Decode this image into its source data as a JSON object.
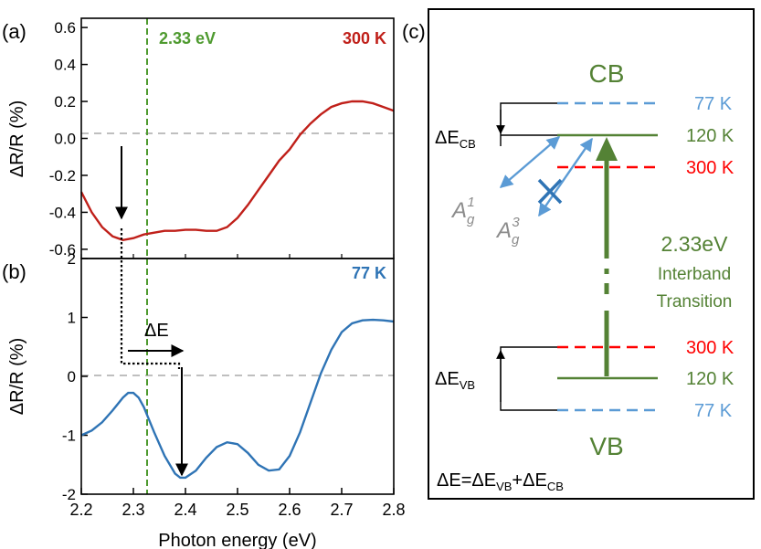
{
  "panels": {
    "a_label": "(a)",
    "b_label": "(b)",
    "c_label": "(c)"
  },
  "chart_data": [
    {
      "type": "line",
      "panel": "(a)",
      "title": "",
      "xlabel": "",
      "ylabel": "ΔR/R (%)",
      "xlim": [
        2.2,
        2.8
      ],
      "ylim": [
        -0.65,
        0.65
      ],
      "yticks": [
        -0.6,
        -0.4,
        -0.2,
        0.0,
        0.2,
        0.4,
        0.6
      ],
      "ytick_labels": [
        "-0.6",
        "-0.4",
        "-0.2",
        "0.0",
        "0.2",
        "0.4",
        "0.6"
      ],
      "series": [
        {
          "name": "300 K",
          "color": "#c0201a",
          "x": [
            2.2,
            2.22,
            2.24,
            2.26,
            2.28,
            2.3,
            2.32,
            2.34,
            2.36,
            2.38,
            2.4,
            2.42,
            2.44,
            2.46,
            2.48,
            2.5,
            2.52,
            2.54,
            2.56,
            2.58,
            2.6,
            2.62,
            2.64,
            2.66,
            2.68,
            2.7,
            2.72,
            2.74,
            2.76,
            2.78,
            2.8
          ],
          "y": [
            -0.29,
            -0.4,
            -0.48,
            -0.53,
            -0.55,
            -0.54,
            -0.52,
            -0.51,
            -0.5,
            -0.5,
            -0.495,
            -0.495,
            -0.5,
            -0.5,
            -0.48,
            -0.43,
            -0.36,
            -0.28,
            -0.2,
            -0.12,
            -0.06,
            0.02,
            0.08,
            0.13,
            0.17,
            0.19,
            0.2,
            0.2,
            0.19,
            0.17,
            0.15
          ]
        }
      ],
      "annotations": {
        "energy_line_label": "2.33 eV",
        "energy_line_x": 2.33,
        "series_label": "300 K",
        "arrow_x": 2.28
      }
    },
    {
      "type": "line",
      "panel": "(b)",
      "title": "",
      "xlabel": "Photon energy (eV)",
      "ylabel": "ΔR/R (%)",
      "xlim": [
        2.2,
        2.8
      ],
      "ylim": [
        -2,
        2
      ],
      "xticks": [
        2.2,
        2.3,
        2.4,
        2.5,
        2.6,
        2.7,
        2.8
      ],
      "xtick_labels": [
        "2.2",
        "2.3",
        "2.4",
        "2.5",
        "2.6",
        "2.7",
        "2.8"
      ],
      "yticks": [
        -2,
        -1,
        0,
        1,
        2
      ],
      "ytick_labels": [
        "-2",
        "-1",
        "0",
        "1",
        "2"
      ],
      "series": [
        {
          "name": "77 K",
          "color": "#2f74b5",
          "x": [
            2.2,
            2.22,
            2.24,
            2.26,
            2.28,
            2.29,
            2.3,
            2.31,
            2.32,
            2.34,
            2.36,
            2.38,
            2.39,
            2.4,
            2.42,
            2.44,
            2.46,
            2.48,
            2.5,
            2.52,
            2.54,
            2.56,
            2.58,
            2.6,
            2.62,
            2.64,
            2.66,
            2.68,
            2.7,
            2.72,
            2.74,
            2.76,
            2.78,
            2.8
          ],
          "y": [
            -1.0,
            -0.92,
            -0.78,
            -0.58,
            -0.36,
            -0.28,
            -0.28,
            -0.36,
            -0.52,
            -0.95,
            -1.35,
            -1.65,
            -1.72,
            -1.72,
            -1.6,
            -1.38,
            -1.2,
            -1.12,
            -1.15,
            -1.3,
            -1.5,
            -1.6,
            -1.58,
            -1.35,
            -0.95,
            -0.45,
            0.05,
            0.45,
            0.75,
            0.9,
            0.95,
            0.96,
            0.95,
            0.93
          ]
        }
      ],
      "annotations": {
        "delta_e_label": "ΔE",
        "series_label": "77 K",
        "energy_line_x": 2.33,
        "arrow_x": 2.39
      }
    }
  ],
  "diagram": {
    "cb_label": "CB",
    "vb_label": "VB",
    "levels_cb": {
      "t77": "77 K",
      "t120": "120 K",
      "t300": "300 K"
    },
    "levels_vb": {
      "t300": "300 K",
      "t120": "120 K",
      "t77": "77 K"
    },
    "delta_cb_main": "ΔE",
    "delta_cb_sub": "CB",
    "delta_vb_main": "ΔE",
    "delta_vb_sub": "VB",
    "ag1_main": "A",
    "ag1_sub": "g",
    "ag1_sup": "1",
    "ag3_main": "A",
    "ag3_sub": "g",
    "ag3_sup": "3",
    "transition_energy": "2.33eV",
    "transition_line1": "Interband",
    "transition_line2": "Transition",
    "formula": {
      "p1": "ΔE=ΔE",
      "s1": "VB",
      "p2": "+ΔE",
      "s2": "CB"
    },
    "colors": {
      "green": "#548235",
      "blue": "#5b9bd5",
      "red": "#ff0000",
      "gray": "#7f7f7f"
    }
  }
}
